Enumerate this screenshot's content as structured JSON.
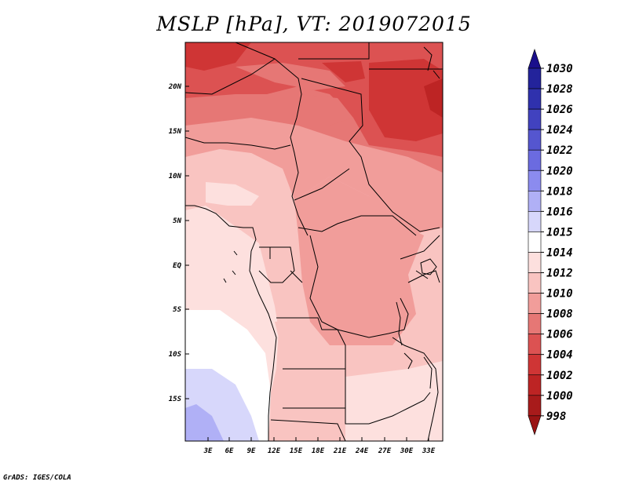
{
  "title": "MSLP [hPa], VT: 2019072015",
  "footer": "GrADS: IGES/COLA",
  "map": {
    "lat_labels": [
      "20N",
      "15N",
      "10N",
      "5N",
      "EQ",
      "5S",
      "10S",
      "15S"
    ],
    "lon_labels": [
      "3E",
      "6E",
      "9E",
      "12E",
      "15E",
      "18E",
      "21E",
      "24E",
      "27E",
      "30E",
      "33E"
    ]
  },
  "colorbar": {
    "levels": [
      "1030",
      "1028",
      "1026",
      "1024",
      "1022",
      "1020",
      "1018",
      "1016",
      "1015",
      "1014",
      "1012",
      "1010",
      "1008",
      "1006",
      "1004",
      "1002",
      "1000",
      "998"
    ],
    "colors": {
      "top_cap": "#1a0f8c",
      "1028_1030": "#23239b",
      "1026_1028": "#2f31ad",
      "1024_1026": "#4142bf",
      "1022_1024": "#5556cf",
      "1020_1022": "#6b6be0",
      "1018_1020": "#8b8bef",
      "1016_1018": "#b0b0f6",
      "1015_1016": "#d7d7fb",
      "1014_1015": "#ffffff",
      "1012_1014": "#fde0de",
      "1010_1012": "#f9c4c1",
      "1008_1010": "#f19d9a",
      "1006_1008": "#e67775",
      "1004_1006": "#dc5252",
      "1002_1004": "#cf3535",
      "1000_1002": "#bd2424",
      "998_1000": "#a81b1b",
      "bottom_cap": "#9a1414"
    }
  }
}
